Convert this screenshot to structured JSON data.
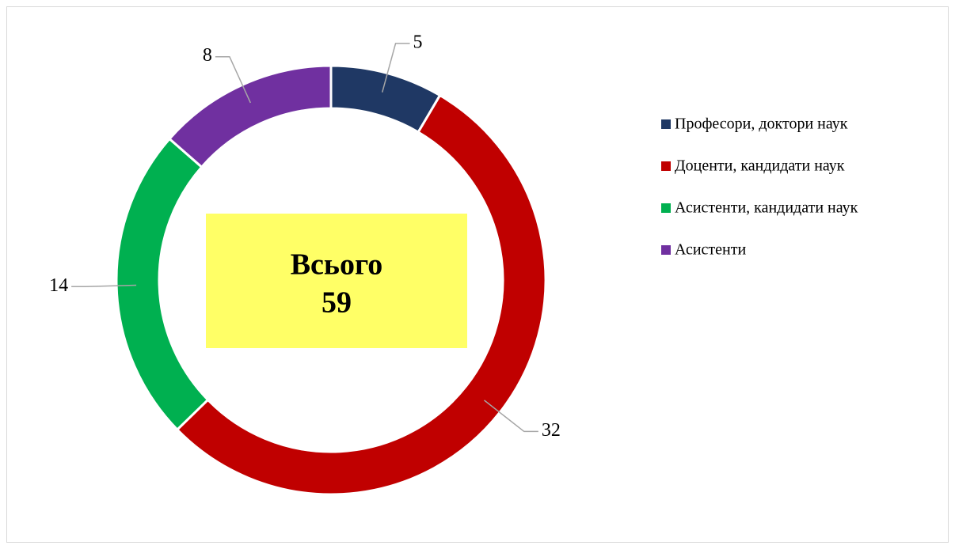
{
  "chart_data": {
    "type": "donut",
    "categories": [
      "Професори, доктори наук",
      "Доценти, кандидати наук",
      "Асистенти, кандидати наук",
      "Асистенти"
    ],
    "values": [
      5,
      32,
      14,
      8
    ],
    "colors": [
      "#1f3864",
      "#c00000",
      "#00b050",
      "#7030a0"
    ],
    "center_title": "Всього",
    "center_value": 59,
    "legend": "right"
  }
}
